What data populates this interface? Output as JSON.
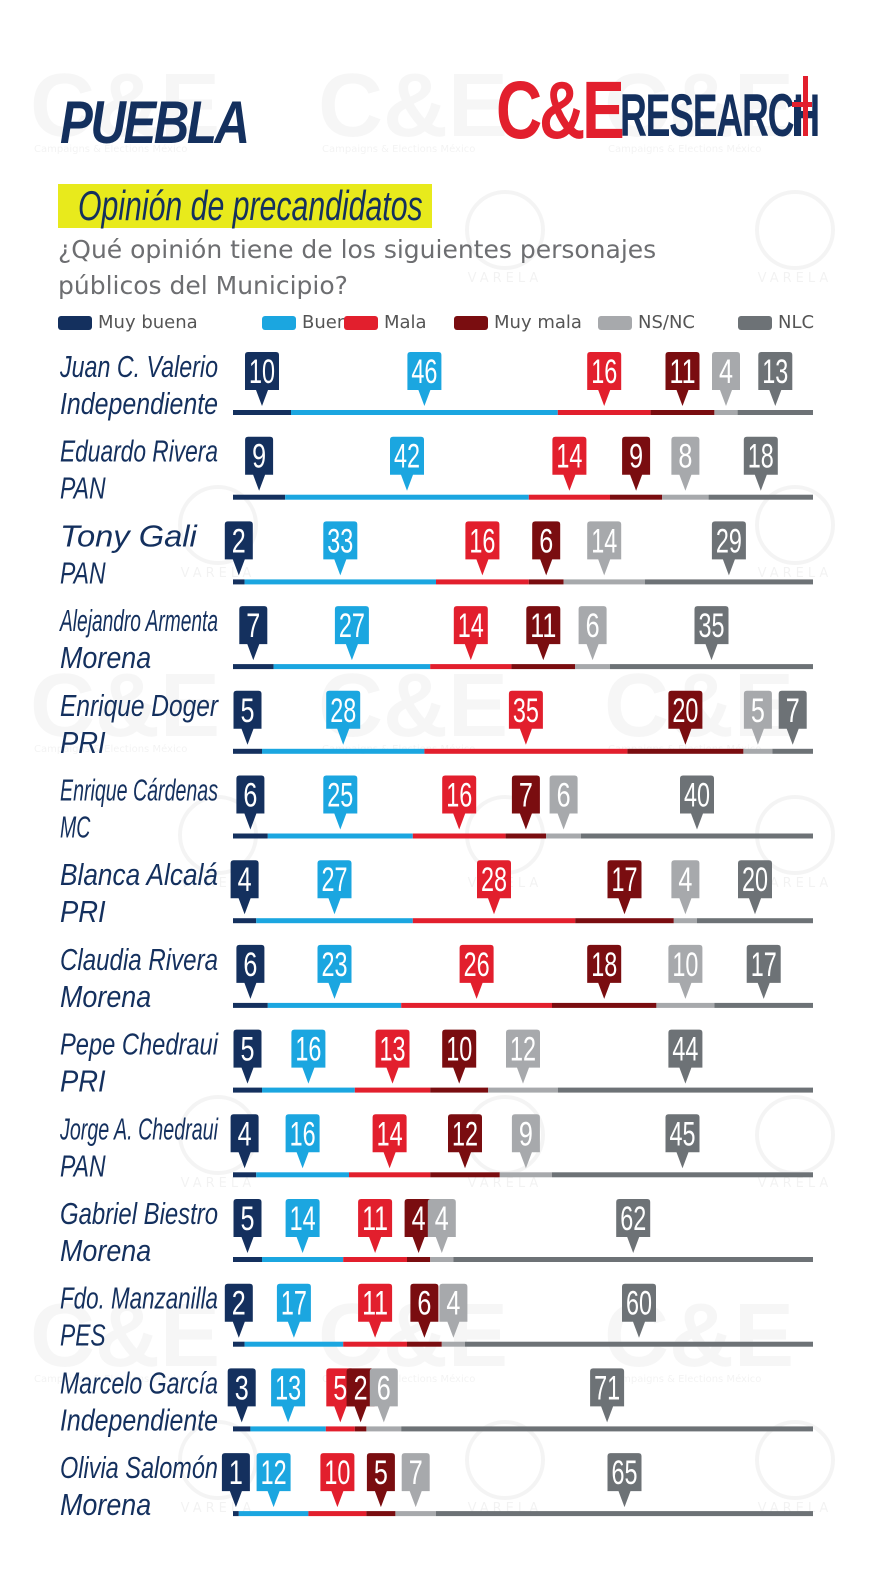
{
  "header": {
    "state": "PUEBLA",
    "brand_ce": "C&E",
    "brand_research": "RESEARCH",
    "title": "Opinión de  precandidatos",
    "question": "¿Qué opinión tiene de los siguientes personajes públicos del Municipio?"
  },
  "watermark": {
    "ce_text": "C&E",
    "ce_caption": "Campaigns & Elections México",
    "varela_text": "VARELA"
  },
  "colors": {
    "muy_buena": "#14305e",
    "buena": "#1ba6e0",
    "mala": "#e21f2d",
    "muy_mala": "#7a0d10",
    "ns_nc": "#a7a9ac",
    "nlc": "#6d7276",
    "title_bg": "#e8ea1c"
  },
  "chart_data": {
    "type": "bar",
    "stacked": true,
    "orientation": "horizontal",
    "unit": "%",
    "categories": [
      [
        "Juan C. Valerio",
        "Independiente"
      ],
      [
        "Eduardo Rivera",
        "PAN"
      ],
      [
        "Tony Gali",
        "PAN"
      ],
      [
        "Alejandro Armenta",
        "Morena"
      ],
      [
        "Enrique Doger",
        "PRI"
      ],
      [
        "Enrique Cárdenas",
        "MC"
      ],
      [
        "Blanca Alcalá",
        "PRI"
      ],
      [
        "Claudia Rivera",
        "Morena"
      ],
      [
        "Pepe Chedraui",
        "PRI"
      ],
      [
        "Jorge A. Chedraui",
        "PAN"
      ],
      [
        "Gabriel Biestro",
        "Morena"
      ],
      [
        "Fdo. Manzanilla",
        "PES"
      ],
      [
        "Marcelo García",
        "Independiente"
      ],
      [
        "Olivia Salomón",
        "Morena"
      ]
    ],
    "series": [
      {
        "name": "Muy buena",
        "values": [
          10,
          9,
          2,
          7,
          5,
          6,
          4,
          6,
          5,
          4,
          5,
          2,
          3,
          1
        ]
      },
      {
        "name": "Buena",
        "values": [
          46,
          42,
          33,
          27,
          28,
          25,
          27,
          23,
          16,
          16,
          14,
          17,
          13,
          12
        ]
      },
      {
        "name": "Mala",
        "values": [
          16,
          14,
          16,
          14,
          35,
          16,
          28,
          26,
          13,
          14,
          11,
          11,
          5,
          10
        ]
      },
      {
        "name": "Muy mala",
        "values": [
          11,
          9,
          6,
          11,
          20,
          7,
          17,
          18,
          10,
          12,
          4,
          6,
          2,
          5
        ]
      },
      {
        "name": "NS/NC",
        "values": [
          4,
          8,
          14,
          6,
          5,
          6,
          4,
          10,
          12,
          9,
          4,
          4,
          6,
          7
        ]
      },
      {
        "name": "NLC",
        "values": [
          13,
          18,
          29,
          35,
          7,
          40,
          20,
          17,
          44,
          45,
          62,
          60,
          71,
          65
        ]
      }
    ],
    "legend": "top",
    "grid": false
  }
}
